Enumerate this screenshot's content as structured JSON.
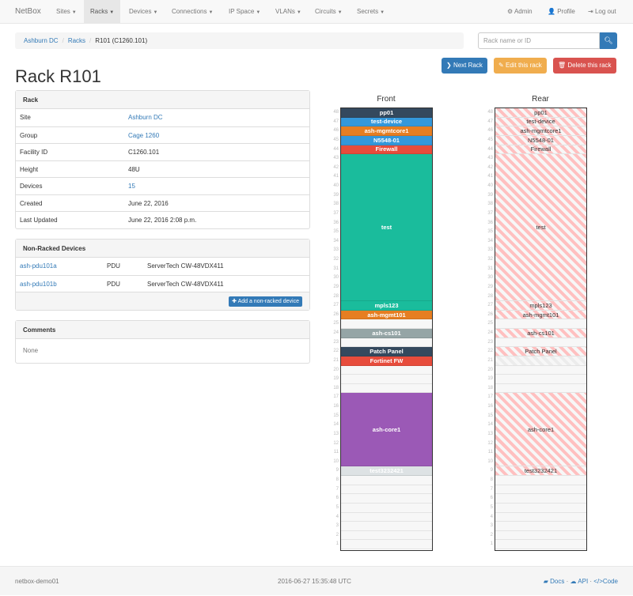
{
  "navbar": {
    "brand": "NetBox",
    "items": [
      {
        "label": "Sites",
        "active": false
      },
      {
        "label": "Racks",
        "active": true
      },
      {
        "label": "Devices",
        "active": false
      },
      {
        "label": "Connections",
        "active": false
      },
      {
        "label": "IP Space",
        "active": false
      },
      {
        "label": "VLANs",
        "active": false
      },
      {
        "label": "Circuits",
        "active": false
      },
      {
        "label": "Secrets",
        "active": false
      }
    ],
    "right": {
      "admin": "Admin",
      "profile": "Profile",
      "logout": "Log out"
    }
  },
  "breadcrumb": [
    "Ashburn DC",
    "Racks",
    "R101 (C1260.101)"
  ],
  "search": {
    "placeholder": "Rack name or ID",
    "value": ""
  },
  "actions": {
    "next": "Next Rack",
    "edit": "Edit this rack",
    "delete": "Delete this rack"
  },
  "title": "Rack R101",
  "rack_panel": {
    "heading": "Rack",
    "rows": [
      {
        "label": "Site",
        "value": "Ashburn DC",
        "link": true
      },
      {
        "label": "Group",
        "value": "Cage 1260",
        "link": true
      },
      {
        "label": "Facility ID",
        "value": "C1260.101",
        "link": false
      },
      {
        "label": "Height",
        "value": "48U",
        "link": false
      },
      {
        "label": "Devices",
        "value": "15",
        "link": true
      },
      {
        "label": "Created",
        "value": "June 22, 2016",
        "link": false
      },
      {
        "label": "Last Updated",
        "value": "June 22, 2016 2:08 p.m.",
        "link": false
      }
    ]
  },
  "nonracked": {
    "heading": "Non-Racked Devices",
    "rows": [
      {
        "name": "ash-pdu101a",
        "role": "PDU",
        "type": "ServerTech CW-48VDX411"
      },
      {
        "name": "ash-pdu101b",
        "role": "PDU",
        "type": "ServerTech CW-48VDX411"
      }
    ],
    "add_label": "Add a non-racked device"
  },
  "comments": {
    "heading": "Comments",
    "body": "None"
  },
  "elevation": {
    "units": 48,
    "front_label": "Front",
    "rear_label": "Rear",
    "devices": [
      {
        "name": "pp01",
        "position": 48,
        "height": 1,
        "color": "#34495e"
      },
      {
        "name": "test-device",
        "position": 47,
        "height": 1,
        "color": "#3498db"
      },
      {
        "name": "ash-mgmtcore1",
        "position": 46,
        "height": 1,
        "color": "#e67e22"
      },
      {
        "name": "N5548-01",
        "position": 45,
        "height": 1,
        "color": "#3498db"
      },
      {
        "name": "Firewall",
        "position": 44,
        "height": 1,
        "color": "#e74c3c"
      },
      {
        "name": "test",
        "position": 28,
        "height": 16,
        "color": "#1abc9c"
      },
      {
        "name": "mpls123",
        "position": 27,
        "height": 1,
        "color": "#1abc9c"
      },
      {
        "name": "ash-mgmt101",
        "position": 26,
        "height": 1,
        "color": "#e67e22"
      },
      {
        "name": "ash-cs101",
        "position": 24,
        "height": 1,
        "color": "#95a5a6"
      },
      {
        "name": "Patch Panel",
        "position": 22,
        "height": 1,
        "color": "#34495e"
      },
      {
        "name": "Fortinet FW",
        "position": 21,
        "height": 1,
        "color": "#e74c3c",
        "rear_hidden": true
      },
      {
        "name": "ash-core1",
        "position": 10,
        "height": 8,
        "color": "#9b59b6"
      },
      {
        "name": "test3232421",
        "position": 9,
        "height": 1,
        "color": "#dde2e4"
      }
    ]
  },
  "footer": {
    "host": "netbox-demo01",
    "timestamp": "2016-06-27 15:35:48 UTC",
    "docs": "Docs",
    "api": "API",
    "code": "Code"
  }
}
